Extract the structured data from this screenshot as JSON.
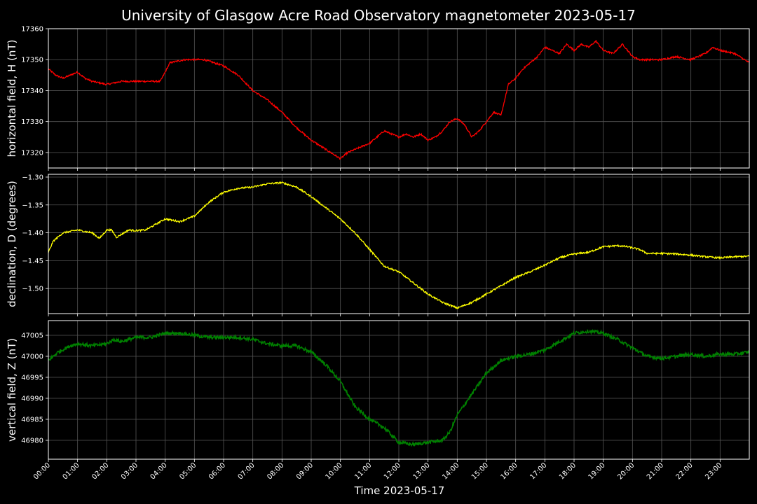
{
  "chart_data": {
    "type": "line",
    "title": "University of Glasgow Acre Road Observatory magnetometer 2023-05-17",
    "xlabel": "Time 2023-05-17",
    "x_ticks": [
      "00:00",
      "01:00",
      "02:00",
      "03:00",
      "04:00",
      "05:00",
      "06:00",
      "07:00",
      "08:00",
      "09:00",
      "10:00",
      "11:00",
      "12:00",
      "13:00",
      "14:00",
      "15:00",
      "16:00",
      "17:00",
      "18:00",
      "19:00",
      "20:00",
      "21:00",
      "22:00",
      "23:00"
    ],
    "xlim": [
      "00:00",
      "24:00"
    ],
    "grid": true,
    "panels": [
      {
        "name": "H",
        "ylabel": "horizontal field, H (nT)",
        "color": "#ff0000",
        "ylim": [
          17315,
          17360
        ],
        "yticks": [
          "17320",
          "17330",
          "17340",
          "17350",
          "17360"
        ],
        "x": [
          "00:00",
          "00:15",
          "00:30",
          "01:00",
          "01:15",
          "01:30",
          "02:00",
          "02:30",
          "03:00",
          "03:30",
          "03:50",
          "04:10",
          "04:40",
          "05:00",
          "05:20",
          "06:00",
          "06:30",
          "07:00",
          "07:30",
          "08:00",
          "08:30",
          "09:00",
          "09:30",
          "10:00",
          "10:15",
          "10:30",
          "11:00",
          "11:30",
          "12:00",
          "12:15",
          "12:30",
          "12:45",
          "13:00",
          "13:15",
          "13:30",
          "13:45",
          "14:00",
          "14:15",
          "14:30",
          "14:45",
          "15:00",
          "15:15",
          "15:30",
          "15:45",
          "16:00",
          "16:15",
          "16:30",
          "16:45",
          "17:00",
          "17:15",
          "17:30",
          "17:45",
          "18:00",
          "18:15",
          "18:30",
          "18:45",
          "19:00",
          "19:20",
          "19:40",
          "20:00",
          "20:15",
          "20:30",
          "21:00",
          "21:30",
          "22:00",
          "22:30",
          "22:45",
          "23:00",
          "23:30",
          "24:00"
        ],
        "values": [
          17347,
          17345,
          17344,
          17346,
          17344,
          17343,
          17342,
          17343,
          17343,
          17343,
          17343,
          17349,
          17350,
          17350,
          17350,
          17348,
          17345,
          17340,
          17337,
          17333,
          17328,
          17324,
          17321,
          17318,
          17320,
          17321,
          17323,
          17327,
          17325,
          17326,
          17325,
          17326,
          17324,
          17325,
          17327,
          17330,
          17331,
          17329,
          17325,
          17327,
          17330,
          17333,
          17332,
          17342,
          17344,
          17347,
          17349,
          17351,
          17354,
          17353,
          17352,
          17355,
          17353,
          17355,
          17354,
          17356,
          17353,
          17352,
          17355,
          17351,
          17350,
          17350,
          17350,
          17351,
          17350,
          17352,
          17354,
          17353,
          17352,
          17349
        ]
      },
      {
        "name": "D",
        "ylabel": "declination, D (degrees)",
        "color": "#ffff00",
        "ylim": [
          -1.545,
          -1.295
        ],
        "yticks": [
          "−1.30",
          "−1.35",
          "−1.40",
          "−1.45",
          "−1.50"
        ],
        "x": [
          "00:00",
          "00:10",
          "00:30",
          "01:00",
          "01:30",
          "01:45",
          "02:00",
          "02:10",
          "02:20",
          "02:45",
          "03:00",
          "03:20",
          "03:40",
          "04:00",
          "04:30",
          "05:00",
          "05:30",
          "06:00",
          "06:30",
          "07:00",
          "07:30",
          "08:00",
          "08:30",
          "09:00",
          "09:30",
          "10:00",
          "10:30",
          "11:00",
          "11:30",
          "12:00",
          "12:30",
          "13:00",
          "13:30",
          "14:00",
          "14:30",
          "15:00",
          "15:30",
          "16:00",
          "16:30",
          "17:00",
          "17:30",
          "18:00",
          "18:30",
          "18:45",
          "19:00",
          "19:30",
          "19:50",
          "20:15",
          "20:30",
          "21:00",
          "21:30",
          "22:00",
          "22:30",
          "23:00",
          "23:30",
          "24:00"
        ],
        "values": [
          -1.435,
          -1.415,
          -1.4,
          -1.395,
          -1.4,
          -1.41,
          -1.395,
          -1.395,
          -1.408,
          -1.395,
          -1.396,
          -1.395,
          -1.385,
          -1.375,
          -1.38,
          -1.37,
          -1.345,
          -1.327,
          -1.32,
          -1.318,
          -1.312,
          -1.31,
          -1.318,
          -1.335,
          -1.355,
          -1.375,
          -1.4,
          -1.43,
          -1.46,
          -1.47,
          -1.49,
          -1.51,
          -1.525,
          -1.535,
          -1.525,
          -1.51,
          -1.495,
          -1.48,
          -1.47,
          -1.458,
          -1.445,
          -1.438,
          -1.435,
          -1.43,
          -1.425,
          -1.423,
          -1.425,
          -1.43,
          -1.437,
          -1.437,
          -1.438,
          -1.44,
          -1.443,
          -1.445,
          -1.443,
          -1.442
        ]
      },
      {
        "name": "Z",
        "ylabel": "vertical field, Z (nT)",
        "color": "#008000",
        "ylim": [
          46975.5,
          47008.5
        ],
        "yticks": [
          "46980",
          "46985",
          "46990",
          "46995",
          "47000",
          "47005"
        ],
        "x": [
          "00:00",
          "00:20",
          "00:45",
          "01:00",
          "01:30",
          "02:00",
          "02:15",
          "02:30",
          "03:00",
          "03:30",
          "04:00",
          "04:30",
          "05:00",
          "05:30",
          "06:00",
          "06:30",
          "07:00",
          "07:30",
          "08:00",
          "08:30",
          "09:00",
          "09:30",
          "10:00",
          "10:30",
          "11:00",
          "11:30",
          "12:00",
          "12:30",
          "13:00",
          "13:30",
          "13:45",
          "14:00",
          "14:30",
          "15:00",
          "15:30",
          "16:00",
          "16:30",
          "17:00",
          "17:30",
          "18:00",
          "18:30",
          "19:00",
          "19:30",
          "20:00",
          "20:30",
          "21:00",
          "21:30",
          "22:00",
          "22:30",
          "23:00",
          "23:30",
          "24:00"
        ],
        "values": [
          46999,
          47001,
          47002.5,
          47003,
          47002.5,
          47003,
          47004,
          47003.5,
          47004.5,
          47004.5,
          47005.5,
          47005.5,
          47005,
          47004.5,
          47004.5,
          47004.5,
          47004,
          47003,
          47002.5,
          47002.5,
          47001,
          46998,
          46994,
          46988,
          46985,
          46983,
          46979.5,
          46979,
          46979.5,
          46980,
          46982,
          46986,
          46991,
          46996,
          46999,
          47000,
          47000.5,
          47001.5,
          47003.5,
          47005.5,
          47006,
          47005.5,
          47004,
          47002,
          47000,
          46999.5,
          47000,
          47000.5,
          47000,
          47000.5,
          47000.5,
          47001
        ]
      }
    ]
  }
}
